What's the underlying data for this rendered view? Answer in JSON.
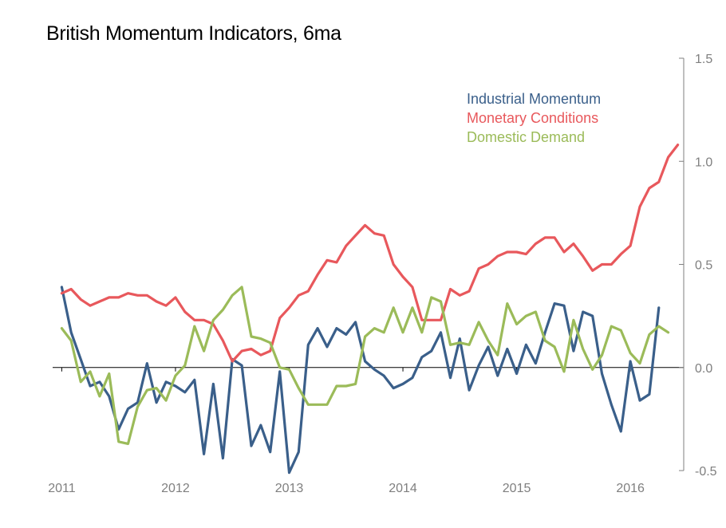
{
  "chart_data": {
    "type": "line",
    "title": "British Momentum Indicators, 6ma",
    "xlabel": "",
    "ylabel": "",
    "x_tick_labels": [
      "2011",
      "2012",
      "2013",
      "2014",
      "2015",
      "2016"
    ],
    "x_ticks": [
      2011,
      2012,
      2013,
      2014,
      2015,
      2016
    ],
    "xlim": [
      2010.92,
      2016.42
    ],
    "y_tick_labels": [
      "1.5",
      "1.0",
      "0.5",
      "0.0",
      "-0.5"
    ],
    "y_ticks": [
      1.5,
      1.0,
      0.5,
      0.0,
      -0.5
    ],
    "ylim": [
      -0.5,
      1.5
    ],
    "y_axis_side": "right",
    "grid": false,
    "legend_position": "top-right",
    "series": [
      {
        "name": "Industrial Momentum",
        "color": "#3a5f8a",
        "x": [
          2011.0,
          2011.083,
          2011.167,
          2011.25,
          2011.333,
          2011.417,
          2011.5,
          2011.583,
          2011.667,
          2011.75,
          2011.833,
          2011.917,
          2012.0,
          2012.083,
          2012.167,
          2012.25,
          2012.333,
          2012.417,
          2012.5,
          2012.583,
          2012.667,
          2012.75,
          2012.833,
          2012.917,
          2013.0,
          2013.083,
          2013.167,
          2013.25,
          2013.333,
          2013.417,
          2013.5,
          2013.583,
          2013.667,
          2013.75,
          2013.833,
          2013.917,
          2014.0,
          2014.083,
          2014.167,
          2014.25,
          2014.333,
          2014.417,
          2014.5,
          2014.583,
          2014.667,
          2014.75,
          2014.833,
          2014.917,
          2015.0,
          2015.083,
          2015.167,
          2015.25,
          2015.333,
          2015.417,
          2015.5,
          2015.583,
          2015.667,
          2015.75,
          2015.833,
          2015.917,
          2016.0,
          2016.083,
          2016.167,
          2016.25
        ],
        "values": [
          0.39,
          0.17,
          0.04,
          -0.09,
          -0.07,
          -0.14,
          -0.3,
          -0.2,
          -0.17,
          0.02,
          -0.17,
          -0.07,
          -0.09,
          -0.12,
          -0.06,
          -0.42,
          -0.08,
          -0.44,
          0.04,
          0.01,
          -0.38,
          -0.28,
          -0.41,
          -0.02,
          -0.51,
          -0.41,
          0.11,
          0.19,
          0.1,
          0.19,
          0.16,
          0.22,
          0.03,
          -0.01,
          -0.04,
          -0.1,
          -0.08,
          -0.05,
          0.05,
          0.08,
          0.17,
          -0.05,
          0.14,
          -0.11,
          0.01,
          0.1,
          -0.04,
          0.09,
          -0.03,
          0.11,
          0.02,
          0.17,
          0.31,
          0.3,
          0.08,
          0.27,
          0.25,
          -0.03,
          -0.18,
          -0.31,
          0.03,
          -0.16,
          -0.13,
          0.29
        ]
      },
      {
        "name": "Monetary Conditions",
        "color": "#e8585c",
        "x": [
          2011.0,
          2011.083,
          2011.167,
          2011.25,
          2011.333,
          2011.417,
          2011.5,
          2011.583,
          2011.667,
          2011.75,
          2011.833,
          2011.917,
          2012.0,
          2012.083,
          2012.167,
          2012.25,
          2012.333,
          2012.417,
          2012.5,
          2012.583,
          2012.667,
          2012.75,
          2012.833,
          2012.917,
          2013.0,
          2013.083,
          2013.167,
          2013.25,
          2013.333,
          2013.417,
          2013.5,
          2013.583,
          2013.667,
          2013.75,
          2013.833,
          2013.917,
          2014.0,
          2014.083,
          2014.167,
          2014.25,
          2014.333,
          2014.417,
          2014.5,
          2014.583,
          2014.667,
          2014.75,
          2014.833,
          2014.917,
          2015.0,
          2015.083,
          2015.167,
          2015.25,
          2015.333,
          2015.417,
          2015.5,
          2015.583,
          2015.667,
          2015.75,
          2015.833,
          2015.917,
          2016.0,
          2016.083,
          2016.167,
          2016.25,
          2016.333,
          2016.417
        ],
        "values": [
          0.36,
          0.38,
          0.33,
          0.3,
          0.32,
          0.34,
          0.34,
          0.36,
          0.35,
          0.35,
          0.32,
          0.3,
          0.34,
          0.27,
          0.23,
          0.23,
          0.21,
          0.13,
          0.03,
          0.08,
          0.09,
          0.06,
          0.08,
          0.24,
          0.29,
          0.35,
          0.37,
          0.45,
          0.52,
          0.51,
          0.59,
          0.64,
          0.69,
          0.65,
          0.64,
          0.5,
          0.44,
          0.39,
          0.23,
          0.23,
          0.23,
          0.38,
          0.35,
          0.37,
          0.48,
          0.5,
          0.54,
          0.56,
          0.56,
          0.55,
          0.6,
          0.63,
          0.63,
          0.56,
          0.6,
          0.54,
          0.47,
          0.5,
          0.5,
          0.55,
          0.59,
          0.78,
          0.87,
          0.9,
          1.02,
          1.08
        ]
      },
      {
        "name": "Domestic Demand",
        "color": "#9bbb59",
        "x": [
          2011.0,
          2011.083,
          2011.167,
          2011.25,
          2011.333,
          2011.417,
          2011.5,
          2011.583,
          2011.667,
          2011.75,
          2011.833,
          2011.917,
          2012.0,
          2012.083,
          2012.167,
          2012.25,
          2012.333,
          2012.417,
          2012.5,
          2012.583,
          2012.667,
          2012.75,
          2012.833,
          2012.917,
          2013.0,
          2013.083,
          2013.167,
          2013.25,
          2013.333,
          2013.417,
          2013.5,
          2013.583,
          2013.667,
          2013.75,
          2013.833,
          2013.917,
          2014.0,
          2014.083,
          2014.167,
          2014.25,
          2014.333,
          2014.417,
          2014.5,
          2014.583,
          2014.667,
          2014.75,
          2014.833,
          2014.917,
          2015.0,
          2015.083,
          2015.167,
          2015.25,
          2015.333,
          2015.417,
          2015.5,
          2015.583,
          2015.667,
          2015.75,
          2015.833,
          2015.917,
          2016.0,
          2016.083,
          2016.167,
          2016.25,
          2016.333
        ],
        "values": [
          0.19,
          0.13,
          -0.07,
          -0.02,
          -0.14,
          -0.03,
          -0.36,
          -0.37,
          -0.19,
          -0.11,
          -0.1,
          -0.16,
          -0.04,
          0.01,
          0.2,
          0.08,
          0.23,
          0.28,
          0.35,
          0.39,
          0.15,
          0.14,
          0.12,
          0.0,
          -0.01,
          -0.1,
          -0.18,
          -0.18,
          -0.18,
          -0.09,
          -0.09,
          -0.08,
          0.15,
          0.19,
          0.17,
          0.29,
          0.17,
          0.29,
          0.17,
          0.34,
          0.32,
          0.11,
          0.12,
          0.11,
          0.22,
          0.13,
          0.06,
          0.31,
          0.21,
          0.25,
          0.27,
          0.13,
          0.1,
          -0.02,
          0.23,
          0.09,
          -0.01,
          0.06,
          0.2,
          0.18,
          0.07,
          0.02,
          0.16,
          0.2,
          0.17
        ]
      }
    ]
  }
}
